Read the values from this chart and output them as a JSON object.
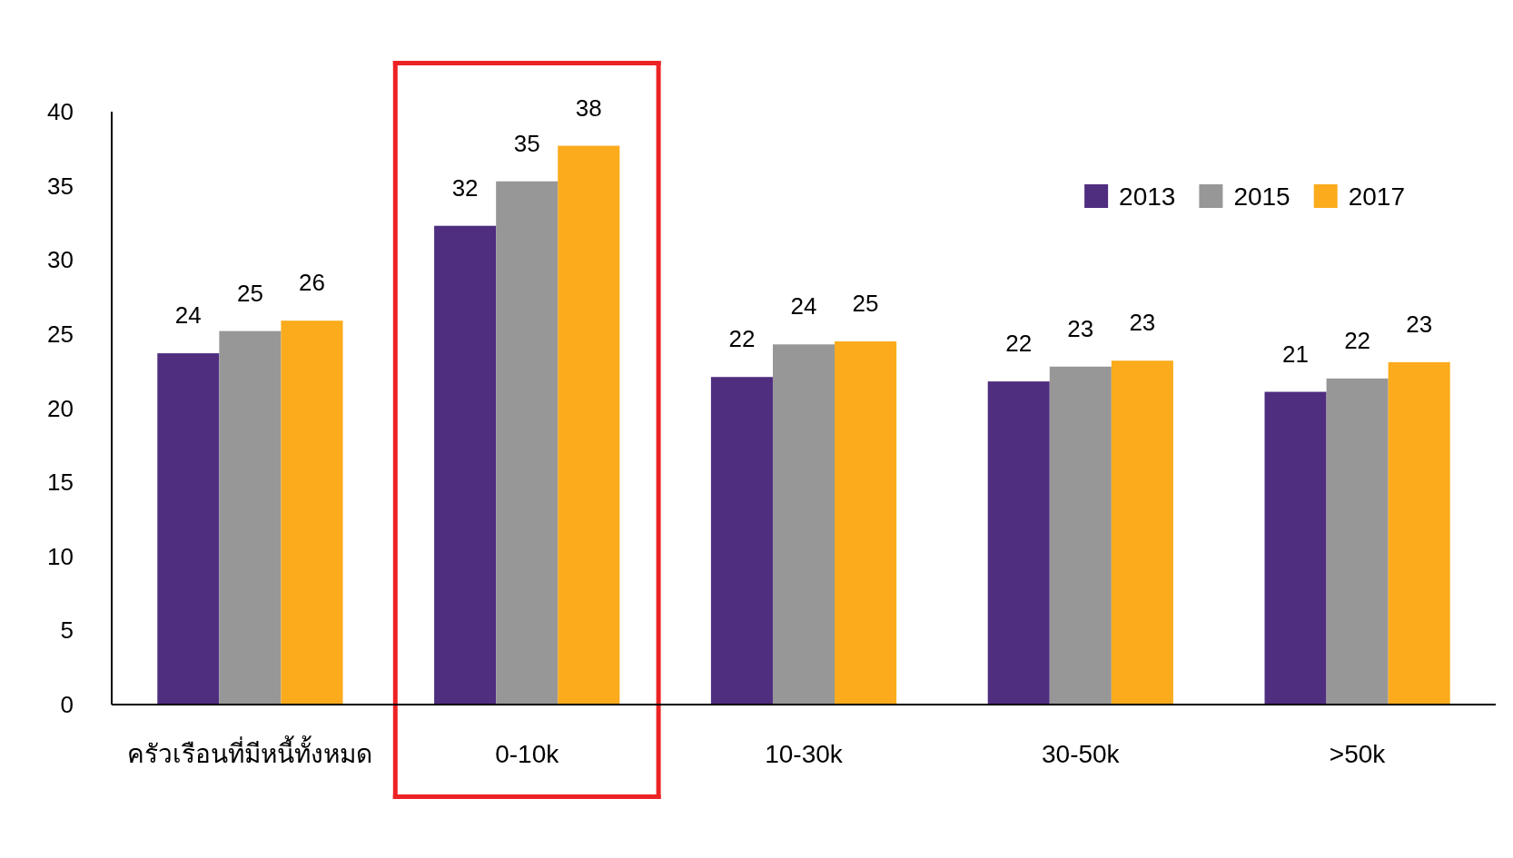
{
  "chart_data": {
    "type": "bar",
    "categories": [
      "ครัวเรือนที่มีหนี้ทั้งหมด",
      "0-10k",
      "10-30k",
      "30-50k",
      ">50k"
    ],
    "series": [
      {
        "name": "2013",
        "color": "#4f2d7f",
        "values": [
          23.7,
          32.3,
          22.1,
          21.8,
          21.1
        ],
        "value_labels": [
          "24",
          "32",
          "22",
          "22",
          "21"
        ]
      },
      {
        "name": "2015",
        "color": "#979797",
        "values": [
          25.2,
          35.3,
          24.3,
          22.8,
          22.0
        ],
        "value_labels": [
          "25",
          "35",
          "24",
          "23",
          "22"
        ]
      },
      {
        "name": "2017",
        "color": "#fbab1c",
        "values": [
          25.9,
          37.7,
          24.5,
          23.2,
          23.1
        ],
        "value_labels": [
          "26",
          "38",
          "25",
          "23",
          "23"
        ]
      }
    ],
    "ylim": [
      0,
      40
    ],
    "yticks": [
      0,
      5,
      10,
      15,
      20,
      25,
      30,
      35,
      40
    ],
    "legend": "top right"
  }
}
